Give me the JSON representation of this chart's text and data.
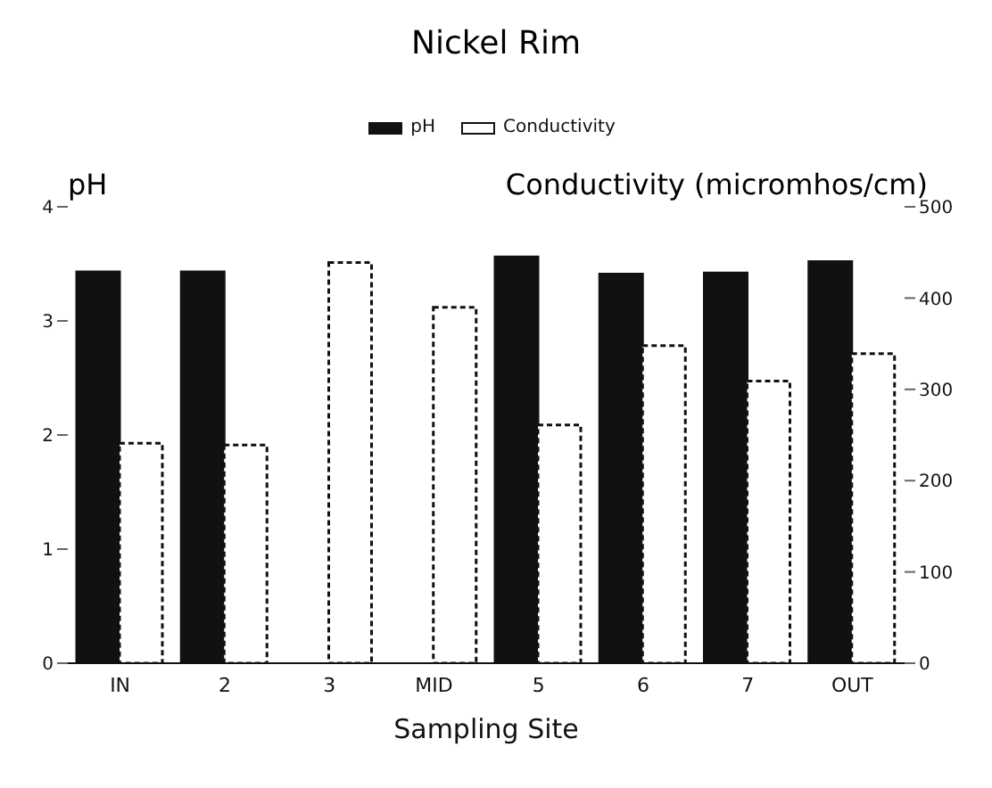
{
  "chart_data": {
    "type": "bar",
    "title": "Nickel Rim",
    "xlabel": "Sampling Site",
    "ylabel": "pH",
    "y2label": "Conductivity (micromhos/cm)",
    "categories": [
      "IN",
      "2",
      "3",
      "MID",
      "5",
      "6",
      "7",
      "OUT"
    ],
    "series": [
      {
        "name": "pH",
        "color": "#111111",
        "values": [
          3.43,
          3.43,
          null,
          null,
          3.56,
          3.41,
          3.42,
          3.52
        ]
      },
      {
        "name": "Conductivity",
        "color": "#ffffff",
        "axis": "y2",
        "values": [
          241,
          239,
          439,
          390,
          261,
          348,
          309,
          339
        ]
      }
    ],
    "ylim": [
      0,
      4
    ],
    "yticks": [
      0,
      1,
      2,
      3,
      4
    ],
    "y2lim": [
      0,
      500
    ],
    "y2ticks": [
      0,
      100,
      200,
      300,
      400,
      500
    ],
    "legend": "top"
  }
}
